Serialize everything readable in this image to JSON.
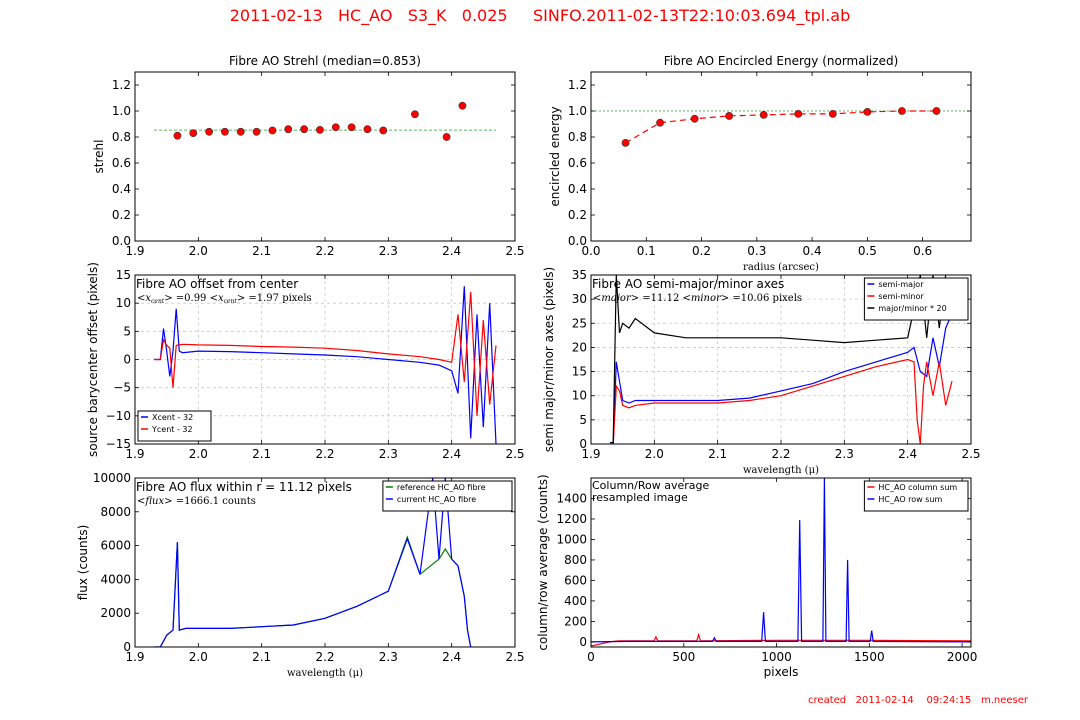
{
  "header": {
    "title": "2011-02-13   HC_AO   S3_K   0.025     SINFO.2011-02-13T22:10:03.694_tpl.ab"
  },
  "footer": {
    "created": "created   2011-02-14    09:24:15   m.neeser"
  },
  "colors": {
    "red": "#ff0000",
    "blue": "#0000ff",
    "green": "#008000",
    "black": "#000000",
    "median_line": "#5cb85c",
    "grid": "#cccccc"
  },
  "chart_data": [
    {
      "id": "strehl",
      "type": "scatter",
      "title": "Fibre AO Strehl (median=0.853)",
      "xlabel": "",
      "ylabel": "strehl",
      "xlim": [
        1.9,
        2.5
      ],
      "ylim": [
        0.0,
        1.3
      ],
      "xticks": [
        "1.9",
        "2.0",
        "2.1",
        "2.2",
        "2.3",
        "2.4",
        "2.5"
      ],
      "yticks": [
        "0.0",
        "0.2",
        "0.4",
        "0.6",
        "0.8",
        "1.0",
        "1.2"
      ],
      "grid": false,
      "x": [
        1.967,
        1.992,
        2.017,
        2.042,
        2.067,
        2.092,
        2.117,
        2.142,
        2.167,
        2.192,
        2.217,
        2.242,
        2.267,
        2.292,
        2.342,
        2.392,
        2.417
      ],
      "y": [
        0.81,
        0.83,
        0.84,
        0.84,
        0.84,
        0.84,
        0.85,
        0.86,
        0.86,
        0.855,
        0.875,
        0.875,
        0.86,
        0.85,
        0.975,
        0.8,
        1.04
      ],
      "median": 0.853,
      "median_x_range": [
        1.93,
        2.47
      ]
    },
    {
      "id": "encircled-energy",
      "type": "line",
      "title": "Fibre AO Encircled Energy (normalized)",
      "xlabel": "radius (arcsec)",
      "ylabel": "encircled energy",
      "xlim": [
        0.0,
        0.6875
      ],
      "ylim": [
        0.0,
        1.3
      ],
      "xticks": [
        "0.0",
        "0.1",
        "0.2",
        "0.3",
        "0.4",
        "0.5",
        "0.6"
      ],
      "yticks": [
        "0.0",
        "0.2",
        "0.4",
        "0.6",
        "0.8",
        "1.0",
        "1.2"
      ],
      "grid": false,
      "x": [
        0.0625,
        0.125,
        0.1875,
        0.25,
        0.3125,
        0.375,
        0.4375,
        0.5,
        0.5625,
        0.625
      ],
      "y": [
        0.755,
        0.91,
        0.94,
        0.962,
        0.97,
        0.978,
        0.978,
        0.993,
        1.0,
        1.0
      ],
      "reference": 1.0
    },
    {
      "id": "offset",
      "type": "line",
      "title": "Fibre AO offset from center",
      "annotation": "<x_cent> =0.99  <x_cent> =1.97 pixels",
      "annotation_parts": [
        "<",
        "x",
        "cent",
        "> =0.99  <",
        "x",
        "cent",
        "> =1.97 pixels"
      ],
      "xlabel": "",
      "ylabel": "source barycenter offset (pixels)",
      "xlim": [
        1.9,
        2.5
      ],
      "ylim": [
        -15,
        15
      ],
      "xticks": [
        "1.9",
        "2.0",
        "2.1",
        "2.2",
        "2.3",
        "2.4",
        "2.5"
      ],
      "yticks": [
        "−15",
        "−10",
        "−5",
        "0",
        "5",
        "10",
        "15"
      ],
      "grid": true,
      "legend": {
        "position": "lower-left",
        "entries": [
          "Xcent - 32",
          "Ycent - 32"
        ]
      },
      "series": [
        {
          "name": "Xcent - 32",
          "color": "#0000ff",
          "x": [
            1.93,
            1.94,
            1.945,
            1.95,
            1.955,
            1.96,
            1.965,
            1.97,
            1.975,
            2.0,
            2.05,
            2.1,
            2.15,
            2.2,
            2.25,
            2.3,
            2.35,
            2.38,
            2.4,
            2.41,
            2.42,
            2.43,
            2.44,
            2.45,
            2.46,
            2.47
          ],
          "y": [
            0,
            0,
            5.5,
            1.5,
            -3,
            1.5,
            9,
            1.5,
            1.2,
            1.5,
            1.4,
            1.2,
            1.0,
            0.8,
            0.5,
            0.0,
            -0.5,
            -1.0,
            -2.0,
            -6,
            13,
            -14,
            8,
            -12,
            10,
            -15
          ]
        },
        {
          "name": "Ycent - 32",
          "color": "#ff0000",
          "x": [
            1.93,
            1.94,
            1.945,
            1.95,
            1.955,
            1.96,
            1.965,
            1.97,
            1.975,
            2.0,
            2.05,
            2.1,
            2.15,
            2.2,
            2.25,
            2.3,
            2.35,
            2.38,
            2.4,
            2.41,
            2.42,
            2.43,
            2.44,
            2.45,
            2.46,
            2.47
          ],
          "y": [
            0,
            0,
            3.5,
            2.5,
            2,
            -5,
            2.5,
            2.6,
            2.7,
            2.6,
            2.5,
            2.3,
            2.2,
            2.0,
            1.6,
            1.0,
            0.5,
            0.0,
            -0.5,
            8,
            -4,
            12,
            -10,
            7,
            -8,
            2.5
          ]
        }
      ]
    },
    {
      "id": "axes",
      "type": "line",
      "title": "Fibre AO semi-major/minor axes",
      "annotation": "<major> =11.12  <minor> =10.06 pixels",
      "annotation_parts": [
        "<",
        "major",
        "> =11.12  <",
        "minor",
        "> =10.06 pixels"
      ],
      "xlabel": "wavelength (μ)",
      "ylabel": "semi major/minor axes (pixels)",
      "xlim": [
        1.9,
        2.5
      ],
      "ylim": [
        0,
        35
      ],
      "xticks": [
        "1.9",
        "2.0",
        "2.1",
        "2.2",
        "2.3",
        "2.4",
        "2.5"
      ],
      "yticks": [
        "0",
        "5",
        "10",
        "15",
        "20",
        "25",
        "30",
        "35"
      ],
      "grid": true,
      "legend": {
        "position": "upper-right",
        "entries": [
          "semi-major",
          "semi-minor",
          "major/minor * 20"
        ]
      },
      "series": [
        {
          "name": "semi-major",
          "color": "#0000ff",
          "x": [
            1.935,
            1.94,
            1.945,
            1.95,
            1.96,
            1.97,
            2.0,
            2.05,
            2.1,
            2.15,
            2.2,
            2.25,
            2.3,
            2.35,
            2.4,
            2.41,
            2.42,
            2.43,
            2.44,
            2.45,
            2.46,
            2.47
          ],
          "y": [
            0,
            17,
            13,
            9,
            8.5,
            9,
            9,
            9,
            9,
            9.5,
            11,
            12.5,
            15,
            17,
            19,
            20,
            15,
            14,
            22,
            16,
            24,
            27
          ]
        },
        {
          "name": "semi-minor",
          "color": "#ff0000",
          "x": [
            1.935,
            1.94,
            1.945,
            1.95,
            1.96,
            1.97,
            2.0,
            2.05,
            2.1,
            2.15,
            2.2,
            2.25,
            2.3,
            2.35,
            2.4,
            2.41,
            2.415,
            2.42,
            2.425,
            2.43,
            2.44,
            2.45,
            2.46,
            2.47
          ],
          "y": [
            0,
            12,
            11,
            8,
            7.5,
            8,
            8.5,
            8.5,
            8.5,
            9,
            10,
            12,
            14,
            16,
            17.5,
            17,
            5,
            0,
            12,
            17,
            10,
            17,
            8,
            13
          ]
        },
        {
          "name": "major/minor * 20",
          "color": "#000000",
          "x": [
            1.93,
            1.935,
            1.94,
            1.945,
            1.95,
            1.96,
            1.97,
            2.0,
            2.05,
            2.1,
            2.15,
            2.2,
            2.25,
            2.3,
            2.35,
            2.4,
            2.41,
            2.42,
            2.43,
            2.44,
            2.45,
            2.46
          ],
          "y": [
            0.3,
            0.3,
            35,
            23,
            25,
            24,
            26,
            23,
            22,
            22,
            22,
            22,
            21.5,
            21,
            21.5,
            22,
            28,
            35,
            22,
            35,
            24,
            35
          ]
        }
      ]
    },
    {
      "id": "flux",
      "type": "line",
      "title": "Fibre AO flux within r = 11.12 pixels",
      "annotation": "<flux> =1666.1 counts",
      "annotation_parts": [
        "<",
        "flux",
        "> =1666.1 counts"
      ],
      "xlabel": "wavelength (μ)",
      "ylabel": "flux (counts)",
      "xlim": [
        1.9,
        2.5
      ],
      "ylim": [
        0,
        10000
      ],
      "xticks": [
        "1.9",
        "2.0",
        "2.1",
        "2.2",
        "2.3",
        "2.4",
        "2.5"
      ],
      "yticks": [
        "0",
        "2000",
        "4000",
        "6000",
        "8000",
        "10000"
      ],
      "grid": false,
      "legend": {
        "position": "upper-right",
        "entries": [
          "reference HC_AO fibre",
          "current HC_AO fibre"
        ]
      },
      "series": [
        {
          "name": "reference HC_AO fibre",
          "color": "#008000",
          "x": [
            1.93,
            1.94,
            1.95,
            1.96,
            1.967,
            1.97,
            1.98,
            2.0,
            2.05,
            2.1,
            2.15,
            2.2,
            2.25,
            2.3,
            2.33,
            2.35,
            2.38,
            2.39,
            2.4,
            2.41,
            2.42,
            2.425,
            2.43
          ],
          "y": [
            0,
            0,
            700,
            1000,
            6200,
            1000,
            1100,
            1100,
            1100,
            1200,
            1300,
            1700,
            2400,
            3300,
            6500,
            4300,
            5200,
            5800,
            5200,
            4800,
            3000,
            1000,
            0
          ]
        },
        {
          "name": "current HC_AO fibre",
          "color": "#0000ff",
          "x": [
            1.93,
            1.94,
            1.95,
            1.96,
            1.967,
            1.97,
            1.98,
            2.0,
            2.05,
            2.1,
            2.15,
            2.2,
            2.25,
            2.3,
            2.33,
            2.35,
            2.37,
            2.38,
            2.39,
            2.4,
            2.41,
            2.42,
            2.425,
            2.43
          ],
          "y": [
            0,
            0,
            700,
            1000,
            6200,
            1000,
            1100,
            1100,
            1100,
            1200,
            1300,
            1700,
            2400,
            3300,
            6400,
            4300,
            10000,
            5200,
            10000,
            5200,
            4800,
            3000,
            1000,
            0
          ]
        }
      ]
    },
    {
      "id": "column-row",
      "type": "line",
      "title": "Column/Row average\nresampled image",
      "title_lines": [
        "Column/Row average",
        "resampled image"
      ],
      "xlabel": "pixels",
      "ylabel": "column/row average (counts)",
      "xlim": [
        0,
        2048
      ],
      "ylim": [
        -50,
        1600
      ],
      "xticks": [
        "0",
        "500",
        "1000",
        "1500",
        "2000"
      ],
      "yticks": [
        "0",
        "200",
        "400",
        "600",
        "800",
        "1000",
        "1200",
        "1400"
      ],
      "grid": false,
      "legend": {
        "position": "upper-right",
        "entries": [
          "HC_AO column sum",
          "HC_AO row sum"
        ]
      },
      "series": [
        {
          "name": "HC_AO column sum",
          "color": "#ff0000",
          "x": [
            0,
            50,
            100,
            150,
            340,
            350,
            360,
            570,
            580,
            590,
            1000,
            1500,
            2048
          ],
          "y": [
            -40,
            -20,
            0,
            10,
            10,
            50,
            10,
            10,
            70,
            10,
            15,
            15,
            10
          ]
        },
        {
          "name": "HC_AO row sum",
          "color": "#0000ff",
          "x": [
            0,
            200,
            655,
            665,
            675,
            920,
            930,
            940,
            1115,
            1125,
            1135,
            1250,
            1258,
            1266,
            1375,
            1383,
            1391,
            1505,
            1513,
            1521,
            2048
          ],
          "y": [
            0,
            5,
            5,
            40,
            5,
            5,
            290,
            5,
            5,
            1190,
            5,
            5,
            1600,
            5,
            5,
            800,
            5,
            5,
            110,
            5,
            0
          ]
        }
      ]
    }
  ]
}
